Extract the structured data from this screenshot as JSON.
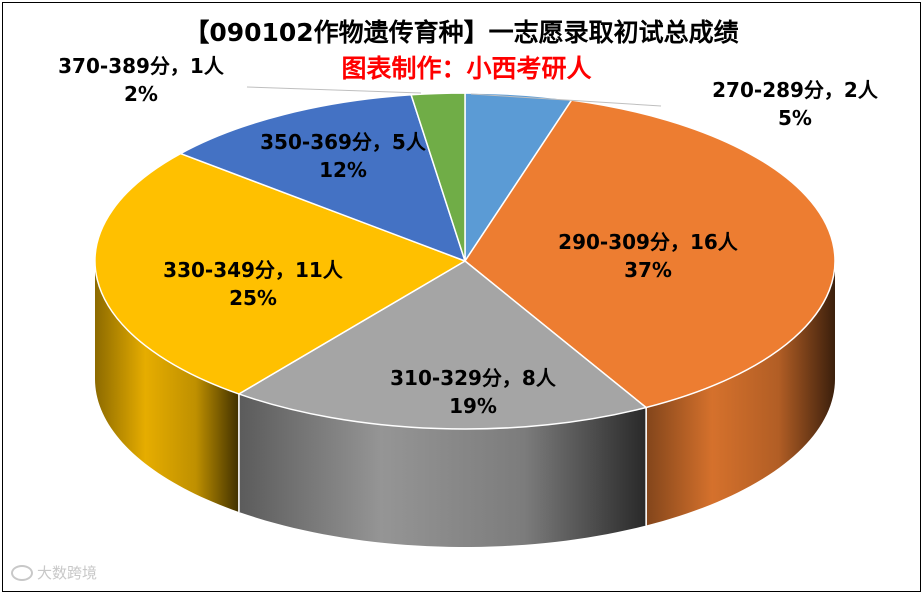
{
  "chart_data": {
    "type": "pie",
    "title": "【090102作物遗传育种】一志愿录取初试总成绩",
    "subtitle": "图表制作：小西考研人",
    "categories": [
      "270-289分",
      "290-309分",
      "310-329分",
      "330-349分",
      "350-369分",
      "370-389分"
    ],
    "counts": [
      2,
      16,
      8,
      11,
      5,
      1
    ],
    "percent_labels": [
      "5%",
      "37%",
      "19%",
      "25%",
      "12%",
      "2%"
    ],
    "data_labels": [
      {
        "line1": "270-289分，2人",
        "line2": "5%"
      },
      {
        "line1": "290-309分，16人",
        "line2": "37%"
      },
      {
        "line1": "310-329分，8人",
        "line2": "19%"
      },
      {
        "line1": "330-349分，11人",
        "line2": "25%"
      },
      {
        "line1": "350-369分，5人",
        "line2": "12%"
      },
      {
        "line1": "370-389分，1人",
        "line2": "2%"
      }
    ],
    "colors": [
      "#5b9bd5",
      "#ed7d31",
      "#a5a5a5",
      "#ffc000",
      "#4472c4",
      "#70ad47"
    ],
    "style": "3d-pie"
  },
  "watermark": "大数跨境"
}
